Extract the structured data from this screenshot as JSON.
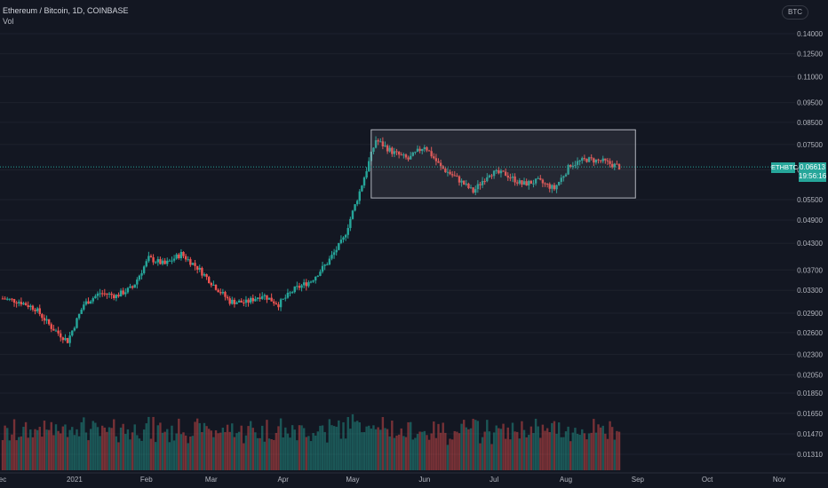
{
  "header": {
    "title": "Ethereum / Bitcoin, 1D, COINBASE",
    "volume_label": "Vol"
  },
  "axis": {
    "currency_badge": "BTC",
    "ticker_tag": "ETHBTC",
    "last_price_tag": "0.06613",
    "countdown_tag": "19:56:16"
  },
  "colors": {
    "background": "#131722",
    "up": "#26a69a",
    "down": "#ef5350",
    "grid": "#1e222d"
  },
  "chart_data": {
    "type": "candlestick",
    "title": "Ethereum / Bitcoin, 1D, COINBASE",
    "scale": "log",
    "ylim": [
      0.0125,
      0.15
    ],
    "y_ticks": [
      "0.14000",
      "0.12500",
      "0.11000",
      "0.09500",
      "0.08500",
      "0.07500",
      "0.06500",
      "0.05500",
      "0.04900",
      "0.04300",
      "0.03700",
      "0.03300",
      "0.02900",
      "0.02600",
      "0.02300",
      "0.02050",
      "0.01850",
      "0.01650",
      "0.01470",
      "0.01310"
    ],
    "x_ticks": [
      "ec",
      "2021",
      "Feb",
      "Mar",
      "Apr",
      "May",
      "Jun",
      "Jul",
      "Aug",
      "Sep",
      "Oct",
      "Nov"
    ],
    "x_tick_dates": [
      "2020-12-01",
      "2021-01-01",
      "2021-02-01",
      "2021-03-01",
      "2021-04-01",
      "2021-05-01",
      "2021-06-01",
      "2021-07-01",
      "2021-08-01",
      "2021-09-01",
      "2021-10-01",
      "2021-11-01"
    ],
    "date_range": [
      "2020-12-01",
      "2021-08-24"
    ],
    "series_close_weekly": [
      {
        "date": "2020-12-01",
        "close": 0.0315
      },
      {
        "date": "2020-12-08",
        "close": 0.031
      },
      {
        "date": "2020-12-15",
        "close": 0.0298
      },
      {
        "date": "2020-12-22",
        "close": 0.0268
      },
      {
        "date": "2020-12-29",
        "close": 0.0248
      },
      {
        "date": "2021-01-05",
        "close": 0.0305
      },
      {
        "date": "2021-01-12",
        "close": 0.0325
      },
      {
        "date": "2021-01-19",
        "close": 0.032
      },
      {
        "date": "2021-01-26",
        "close": 0.0335
      },
      {
        "date": "2021-02-02",
        "close": 0.0395
      },
      {
        "date": "2021-02-09",
        "close": 0.0382
      },
      {
        "date": "2021-02-16",
        "close": 0.0405
      },
      {
        "date": "2021-02-23",
        "close": 0.0375
      },
      {
        "date": "2021-03-02",
        "close": 0.034
      },
      {
        "date": "2021-03-09",
        "close": 0.031
      },
      {
        "date": "2021-03-16",
        "close": 0.0308
      },
      {
        "date": "2021-03-23",
        "close": 0.0322
      },
      {
        "date": "2021-03-30",
        "close": 0.0305
      },
      {
        "date": "2021-04-06",
        "close": 0.0332
      },
      {
        "date": "2021-04-13",
        "close": 0.0348
      },
      {
        "date": "2021-04-20",
        "close": 0.0385
      },
      {
        "date": "2021-04-27",
        "close": 0.044
      },
      {
        "date": "2021-05-04",
        "close": 0.0575
      },
      {
        "date": "2021-05-11",
        "close": 0.077
      },
      {
        "date": "2021-05-18",
        "close": 0.072
      },
      {
        "date": "2021-05-25",
        "close": 0.069
      },
      {
        "date": "2021-06-01",
        "close": 0.0745
      },
      {
        "date": "2021-06-08",
        "close": 0.066
      },
      {
        "date": "2021-06-15",
        "close": 0.062
      },
      {
        "date": "2021-06-22",
        "close": 0.0575
      },
      {
        "date": "2021-06-29",
        "close": 0.064
      },
      {
        "date": "2021-07-06",
        "close": 0.0635
      },
      {
        "date": "2021-07-13",
        "close": 0.06
      },
      {
        "date": "2021-07-20",
        "close": 0.061
      },
      {
        "date": "2021-07-27",
        "close": 0.0585
      },
      {
        "date": "2021-08-03",
        "close": 0.067
      },
      {
        "date": "2021-08-10",
        "close": 0.069
      },
      {
        "date": "2021-08-17",
        "close": 0.0682
      },
      {
        "date": "2021-08-24",
        "close": 0.06613
      }
    ],
    "annotation": {
      "type": "rectangle",
      "from_date": "2021-05-09",
      "to_date": "2021-08-31",
      "high": 0.0815,
      "low": 0.0555
    }
  }
}
